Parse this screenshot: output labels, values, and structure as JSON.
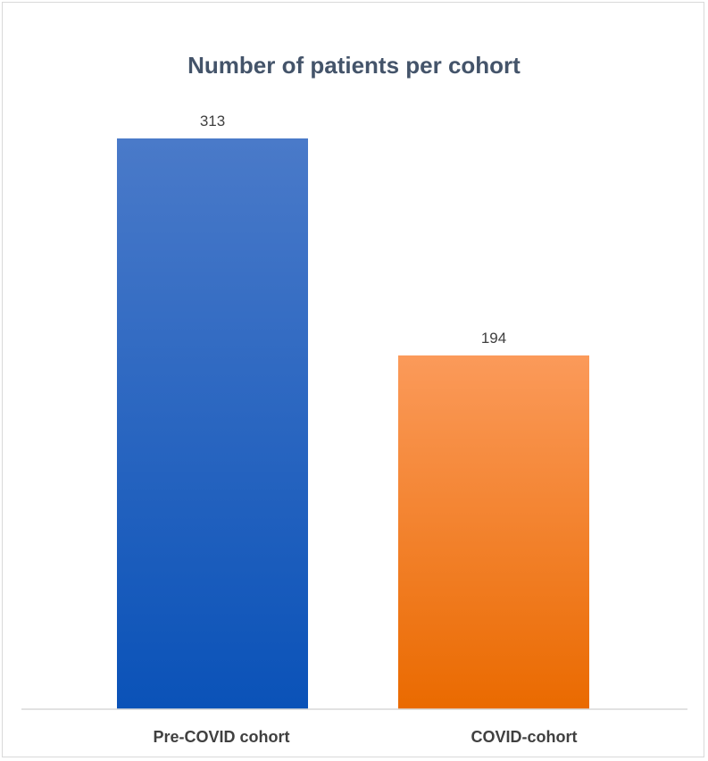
{
  "chart_data": {
    "type": "bar",
    "title": "Number of patients per cohort",
    "categories": [
      "Pre-COVID cohort",
      "COVID-cohort"
    ],
    "values": [
      313,
      194
    ],
    "data_labels": [
      "313",
      "194"
    ],
    "colors": [
      {
        "top": "#4a7ac9",
        "bottom": "#0a52b8"
      },
      {
        "top": "#fb9a5a",
        "bottom": "#ea6a00"
      }
    ],
    "ylim": [
      0,
      350
    ],
    "grid": false,
    "legend": "none"
  }
}
